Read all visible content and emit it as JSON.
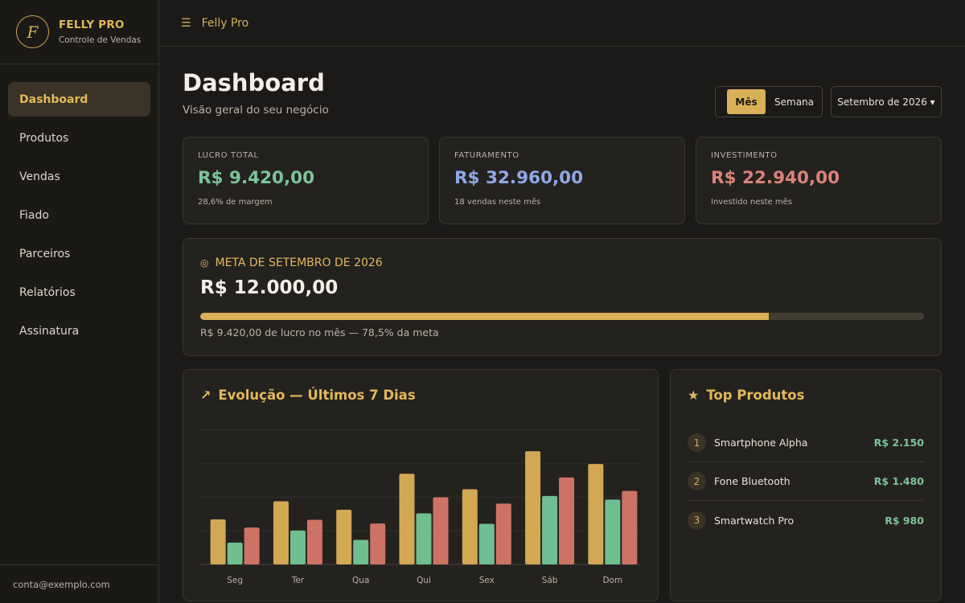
{
  "brand": {
    "logo_letter": "F",
    "title": "FELLY PRO",
    "subtitle": "Controle de Vendas"
  },
  "sidebar": {
    "items": [
      {
        "label": "Dashboard",
        "active": true
      },
      {
        "label": "Produtos"
      },
      {
        "label": "Vendas"
      },
      {
        "label": "Fiado"
      },
      {
        "label": "Parceiros"
      },
      {
        "label": "Relatórios"
      },
      {
        "label": "Assinatura"
      }
    ],
    "footer_email": "conta@exemplo.com"
  },
  "topbar": {
    "menu_icon": "☰",
    "title": "Felly Pro"
  },
  "header": {
    "title": "Dashboard",
    "subtitle": "Visão geral do seu negócio",
    "period_toggle": {
      "active": "Mês",
      "inactive": "Semana"
    },
    "month_select": "Setembro de 2026 ▾"
  },
  "stats": [
    {
      "label": "LUCRO TOTAL",
      "value": "R$ 9.420,00",
      "note": "28,6% de margem",
      "color": "#7cc49a"
    },
    {
      "label": "FATURAMENTO",
      "value": "R$ 32.960,00",
      "note": "18 vendas neste mês",
      "color": "#8fa9e6"
    },
    {
      "label": "INVESTIMENTO",
      "value": "R$ 22.940,00",
      "note": "Investido neste mês",
      "color": "#d9827a"
    }
  ],
  "goal": {
    "icon": "◎",
    "title": "META DE SETEMBRO DE 2026",
    "value": "R$ 12.000,00",
    "progress_fraction": 0.785,
    "note": "R$ 9.420,00 de lucro no mês — 78,5% da meta"
  },
  "chart_card": {
    "icon": "↗",
    "title": "Evolução — Últimos 7 Dias"
  },
  "chart_data": {
    "type": "bar",
    "categories": [
      "Seg",
      "Ter",
      "Qua",
      "Qui",
      "Sex",
      "Sáb",
      "Dom"
    ],
    "series": [
      {
        "values": [
          1340,
          1880,
          1630,
          2700,
          2240,
          3370,
          2990
        ],
        "color": "#d2a853"
      },
      {
        "values": [
          650,
          1010,
          730,
          1520,
          1210,
          2040,
          1930
        ],
        "color": "#6fbf91"
      },
      {
        "values": [
          1100,
          1330,
          1220,
          2000,
          1810,
          2590,
          2190
        ],
        "color": "#cf7266"
      }
    ],
    "ylim": [
      0,
      4000
    ],
    "grid": true
  },
  "top_products": {
    "icon": "★",
    "title": "Top Produtos",
    "items": [
      {
        "rank": "1",
        "name": "Smartphone Alpha",
        "value": "R$ 2.150"
      },
      {
        "rank": "2",
        "name": "Fone Bluetooth",
        "value": "R$ 1.480"
      },
      {
        "rank": "3",
        "name": "Smartwatch Pro",
        "value": "R$ 980"
      }
    ]
  }
}
